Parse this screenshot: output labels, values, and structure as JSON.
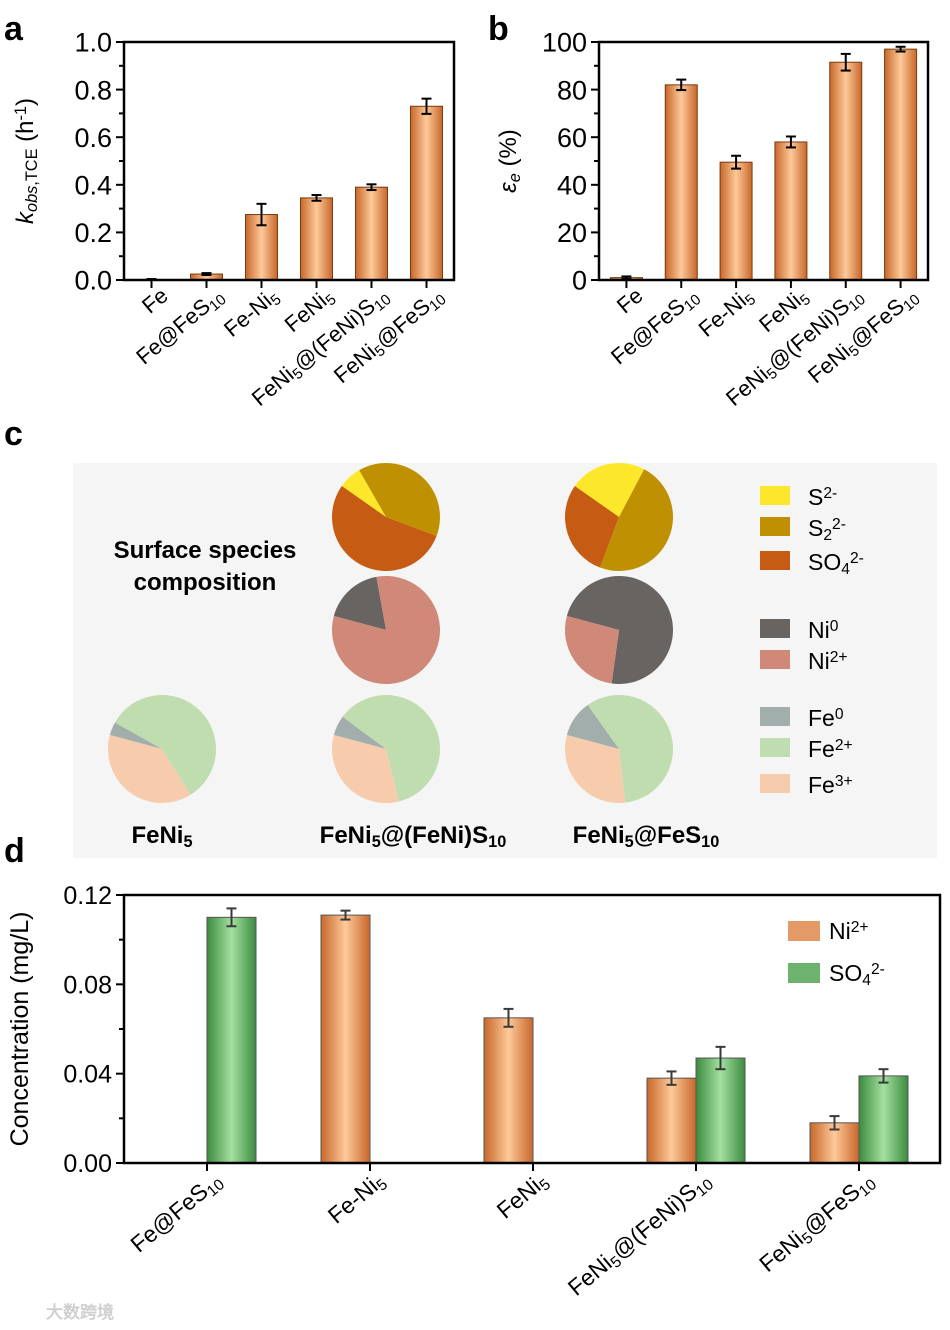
{
  "colors": {
    "orange_dark": "#c8672a",
    "orange_light": "#fdc999",
    "green_dark": "#3b8b3f",
    "green_light": "#a4e0a0",
    "legend_ni2": "#e39a66",
    "legend_so4": "#6db26d",
    "S2-": "#fde72a",
    "S22-": "#bf9102",
    "SO42-": "#c65b13",
    "Ni0": "#686462",
    "Ni2+": "#d08878",
    "Fe0": "#a1aeab",
    "Fe2+": "#c0ddb0",
    "Fe3+": "#f7ccad",
    "panel_c_bg": "#f5f5f5"
  },
  "watermark": "大数跨境",
  "chart_data": [
    {
      "panel": "a",
      "type": "bar",
      "categories": [
        [
          [
            "Fe",
            ""
          ]
        ],
        [
          [
            "Fe@FeS",
            ""
          ],
          [
            "10",
            "sub"
          ]
        ],
        [
          [
            "Fe-Ni",
            ""
          ],
          [
            "5",
            "sub"
          ]
        ],
        [
          [
            "FeNi",
            ""
          ],
          [
            "5",
            "sub"
          ]
        ],
        [
          [
            "FeNi",
            ""
          ],
          [
            "5",
            "sub"
          ],
          [
            "@(FeNi)S",
            ""
          ],
          [
            "10",
            "sub"
          ]
        ],
        [
          [
            "FeNi",
            ""
          ],
          [
            "5",
            "sub"
          ],
          [
            "@FeS",
            ""
          ],
          [
            "10",
            "sub"
          ]
        ]
      ],
      "values": [
        0.002,
        0.025,
        0.275,
        0.345,
        0.39,
        0.73
      ],
      "errors": [
        0.002,
        0.004,
        0.045,
        0.012,
        0.012,
        0.032
      ],
      "ylabel": [
        [
          "k",
          "i"
        ],
        [
          "obs",
          "isub"
        ],
        [
          ",TCE",
          "sub"
        ],
        [
          " (h",
          ""
        ],
        [
          "-1",
          "sup"
        ],
        [
          ")",
          ""
        ]
      ],
      "ylim": [
        0,
        1.0
      ],
      "yticks": [
        "0.0",
        "0.2",
        "0.4",
        "0.6",
        "0.8",
        "1.0"
      ]
    },
    {
      "panel": "b",
      "type": "bar",
      "categories": [
        [
          [
            "Fe",
            ""
          ]
        ],
        [
          [
            "Fe@FeS",
            ""
          ],
          [
            "10",
            "sub"
          ]
        ],
        [
          [
            "Fe-Ni",
            ""
          ],
          [
            "5",
            "sub"
          ]
        ],
        [
          [
            "FeNi",
            ""
          ],
          [
            "5",
            "sub"
          ]
        ],
        [
          [
            "FeNi",
            ""
          ],
          [
            "5",
            "sub"
          ],
          [
            "@(FeNi)S",
            ""
          ],
          [
            "10",
            "sub"
          ]
        ],
        [
          [
            "FeNi",
            ""
          ],
          [
            "5",
            "sub"
          ],
          [
            "@FeS",
            ""
          ],
          [
            "10",
            "sub"
          ]
        ]
      ],
      "values": [
        1,
        82,
        49.5,
        58,
        91.5,
        97
      ],
      "errors": [
        0.5,
        2.2,
        2.7,
        2.3,
        3.5,
        1.0
      ],
      "ylabel": [
        [
          "ε",
          "i"
        ],
        [
          "e",
          "isub"
        ],
        [
          " (%)",
          ""
        ]
      ],
      "ylim": [
        0,
        100
      ],
      "yticks": [
        "0",
        "20",
        "40",
        "60",
        "80",
        "100"
      ]
    },
    {
      "panel": "c",
      "type": "pie",
      "title_lines": [
        "Surface species",
        "composition"
      ],
      "columns": [
        [
          [
            "FeNi",
            ""
          ],
          [
            "5",
            "sub"
          ]
        ],
        [
          [
            "FeNi",
            ""
          ],
          [
            "5",
            "sub"
          ],
          [
            "@(FeNi)S",
            ""
          ],
          [
            "10",
            "sub"
          ]
        ],
        [
          [
            "FeNi",
            ""
          ],
          [
            "5",
            "sub"
          ],
          [
            "@FeS",
            ""
          ],
          [
            "10",
            "sub"
          ]
        ]
      ],
      "pies": [
        {
          "column": 1,
          "group": "S",
          "slices": [
            {
              "key": "S2-",
              "value": 7
            },
            {
              "key": "S22-",
              "value": 39
            },
            {
              "key": "SO42-",
              "value": 54
            }
          ]
        },
        {
          "column": 2,
          "group": "S",
          "slices": [
            {
              "key": "S2-",
              "value": 23
            },
            {
              "key": "S22-",
              "value": 48
            },
            {
              "key": "SO42-",
              "value": 29
            }
          ]
        },
        {
          "column": 1,
          "group": "Ni",
          "slices": [
            {
              "key": "Ni0",
              "value": 18
            },
            {
              "key": "Ni2+",
              "value": 82
            }
          ]
        },
        {
          "column": 2,
          "group": "Ni",
          "slices": [
            {
              "key": "Ni0",
              "value": 73
            },
            {
              "key": "Ni2+",
              "value": 27
            }
          ]
        },
        {
          "column": 0,
          "group": "Fe",
          "slices": [
            {
              "key": "Fe0",
              "value": 4
            },
            {
              "key": "Fe2+",
              "value": 58
            },
            {
              "key": "Fe3+",
              "value": 38
            }
          ]
        },
        {
          "column": 1,
          "group": "Fe",
          "slices": [
            {
              "key": "Fe0",
              "value": 6
            },
            {
              "key": "Fe2+",
              "value": 61
            },
            {
              "key": "Fe3+",
              "value": 33
            }
          ]
        },
        {
          "column": 2,
          "group": "Fe",
          "slices": [
            {
              "key": "Fe0",
              "value": 11
            },
            {
              "key": "Fe2+",
              "value": 58
            },
            {
              "key": "Fe3+",
              "value": 31
            }
          ]
        }
      ],
      "legend": [
        {
          "key": "S2-",
          "label": [
            [
              "S",
              ""
            ],
            [
              "2-",
              "sup"
            ]
          ]
        },
        {
          "key": "S22-",
          "label": [
            [
              "S",
              ""
            ],
            [
              "2",
              "sub"
            ],
            [
              "2-",
              "sup"
            ]
          ]
        },
        {
          "key": "SO42-",
          "label": [
            [
              "SO",
              ""
            ],
            [
              "4",
              "sub"
            ],
            [
              "2-",
              "sup"
            ]
          ]
        },
        {
          "key": "Ni0",
          "label": [
            [
              "Ni",
              ""
            ],
            [
              "0",
              "sup"
            ]
          ]
        },
        {
          "key": "Ni2+",
          "label": [
            [
              "Ni",
              ""
            ],
            [
              "2+",
              "sup"
            ]
          ]
        },
        {
          "key": "Fe0",
          "label": [
            [
              "Fe",
              ""
            ],
            [
              "0",
              "sup"
            ]
          ]
        },
        {
          "key": "Fe2+",
          "label": [
            [
              "Fe",
              ""
            ],
            [
              "2+",
              "sup"
            ]
          ]
        },
        {
          "key": "Fe3+",
          "label": [
            [
              "Fe",
              ""
            ],
            [
              "3+",
              "sup"
            ]
          ]
        }
      ]
    },
    {
      "panel": "d",
      "type": "bar",
      "categories": [
        [
          [
            "Fe@FeS",
            ""
          ],
          [
            "10",
            "sub"
          ]
        ],
        [
          [
            "Fe-Ni",
            ""
          ],
          [
            "5",
            "sub"
          ]
        ],
        [
          [
            "FeNi",
            ""
          ],
          [
            "5",
            "sub"
          ]
        ],
        [
          [
            "FeNi",
            ""
          ],
          [
            "5",
            "sub"
          ],
          [
            "@(FeNi)S",
            ""
          ],
          [
            "10",
            "sub"
          ]
        ],
        [
          [
            "FeNi",
            ""
          ],
          [
            "5",
            "sub"
          ],
          [
            "@FeS",
            ""
          ],
          [
            "10",
            "sub"
          ]
        ]
      ],
      "series": [
        {
          "name": [
            [
              "Ni",
              ""
            ],
            [
              "2+",
              "sup"
            ]
          ],
          "values": [
            null,
            0.111,
            0.065,
            0.038,
            0.018
          ],
          "errors": [
            null,
            0.002,
            0.004,
            0.003,
            0.003
          ]
        },
        {
          "name": [
            [
              "SO",
              ""
            ],
            [
              "4",
              "sub"
            ],
            [
              "2-",
              "sup"
            ]
          ],
          "values": [
            0.11,
            null,
            null,
            0.047,
            0.039
          ],
          "errors": [
            0.004,
            null,
            null,
            0.005,
            0.003
          ]
        }
      ],
      "ylabel": [
        [
          "Concentration (mg/L)",
          ""
        ]
      ],
      "ylim": [
        0,
        0.12
      ],
      "yticks": [
        "0.00",
        "0.04",
        "0.08",
        "0.12"
      ],
      "legend_position": "top-right"
    }
  ]
}
